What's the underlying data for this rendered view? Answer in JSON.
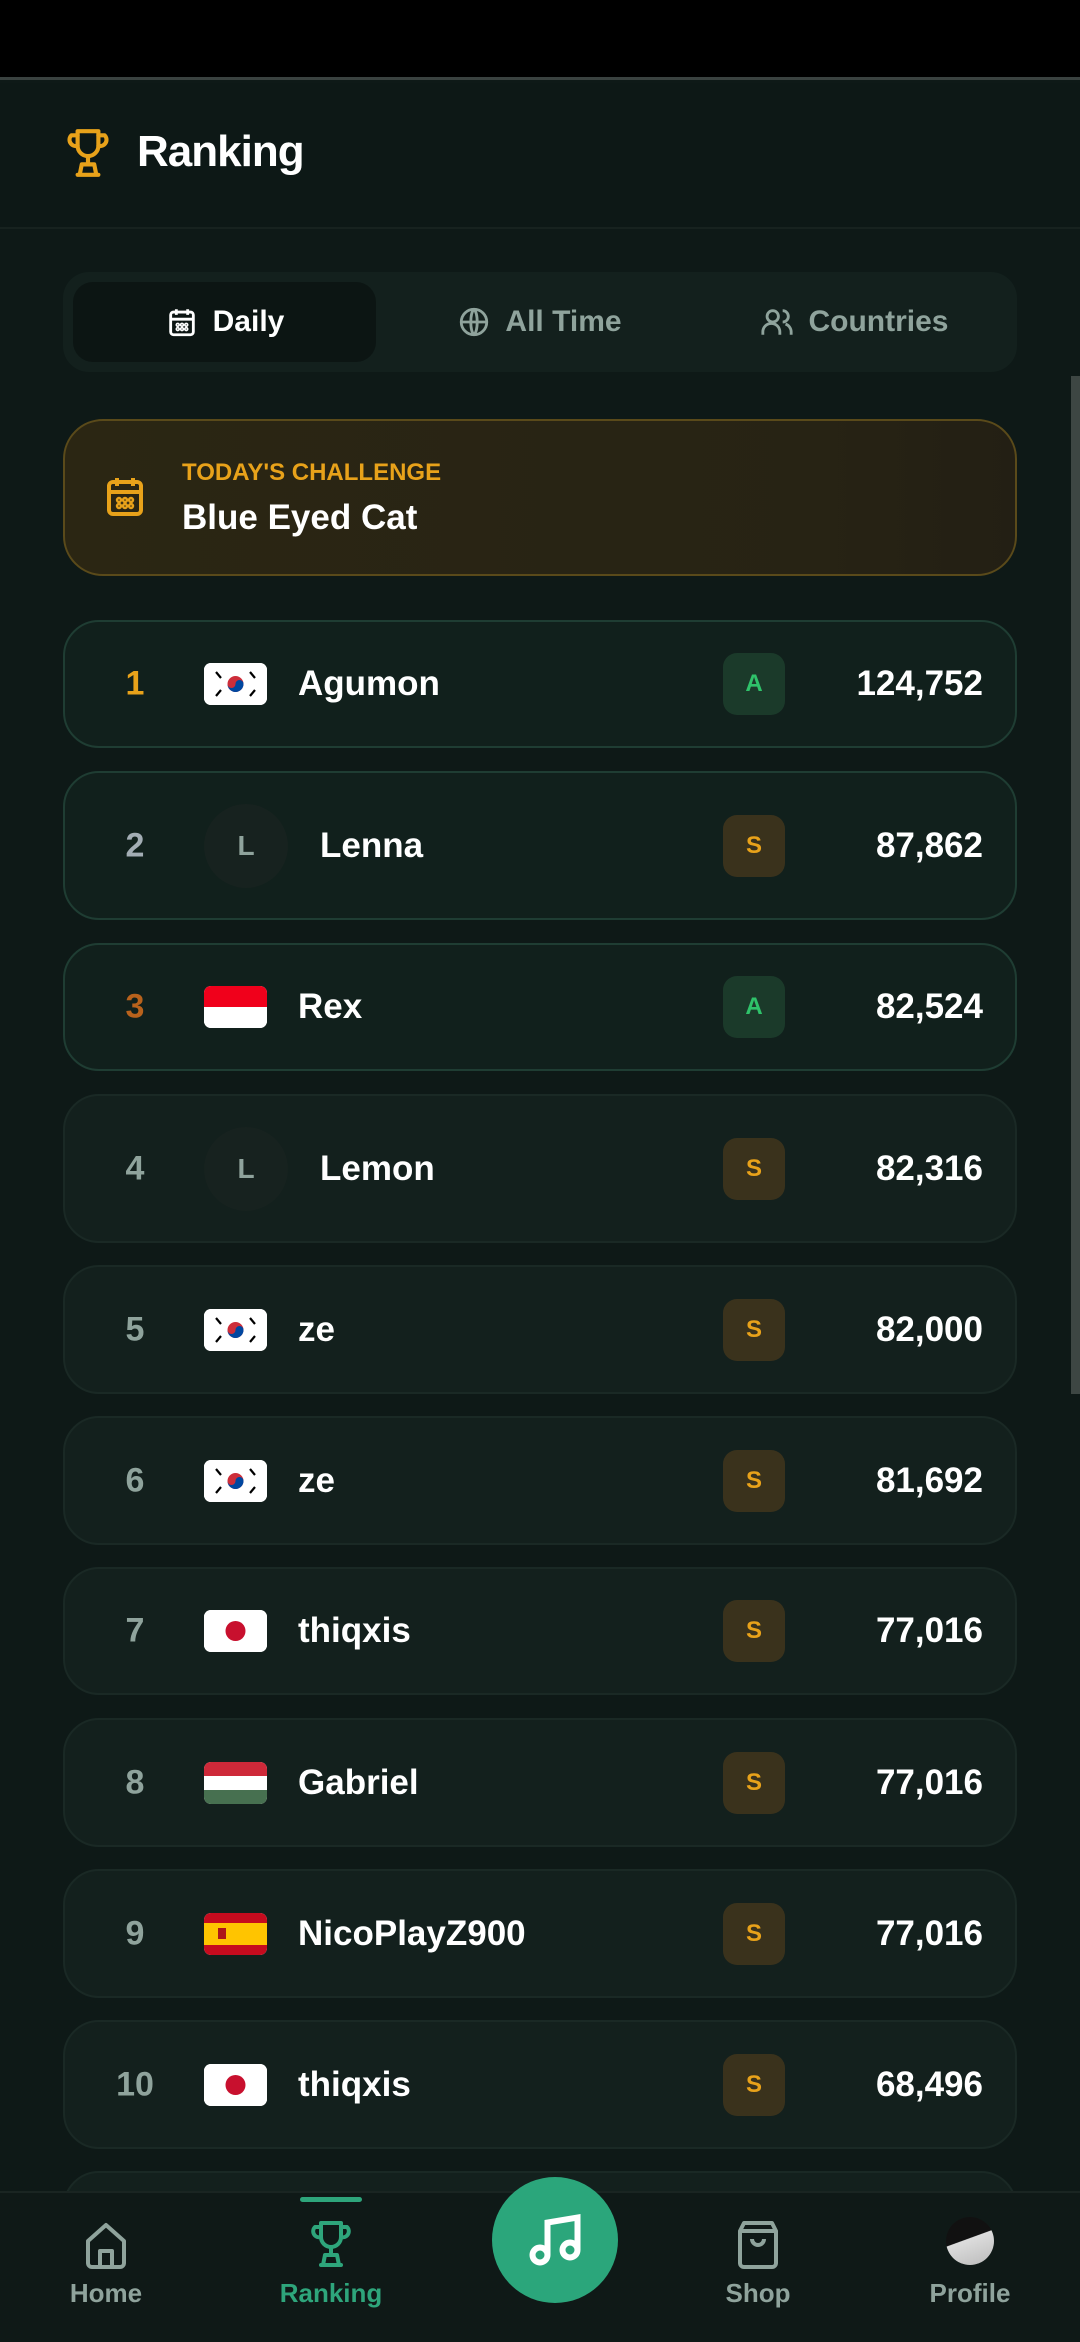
{
  "header": {
    "title": "Ranking",
    "icon": "trophy-icon"
  },
  "tabs": [
    {
      "label": "Daily",
      "icon": "calendar-icon",
      "active": true
    },
    {
      "label": "All Time",
      "icon": "globe-icon",
      "active": false
    },
    {
      "label": "Countries",
      "icon": "users-icon",
      "active": false
    }
  ],
  "challenge": {
    "label": "TODAY'S CHALLENGE",
    "name": "Blue Eyed Cat"
  },
  "colors": {
    "accent": "#2ba67b",
    "gold": "#e8a21a",
    "silver": "#a3adb4",
    "bronze": "#b8621c",
    "background": "#0e1917"
  },
  "rows": [
    {
      "rank": "1",
      "country": "KR",
      "name": "Agumon",
      "grade": "A",
      "score": "124,752"
    },
    {
      "rank": "2",
      "avatar": "L",
      "name": "Lenna",
      "grade": "S",
      "score": "87,862"
    },
    {
      "rank": "3",
      "country": "ID",
      "name": "Rex",
      "grade": "A",
      "score": "82,524"
    },
    {
      "rank": "4",
      "avatar": "L",
      "name": "Lemon",
      "grade": "S",
      "score": "82,316"
    },
    {
      "rank": "5",
      "country": "KR",
      "name": "ze",
      "grade": "S",
      "score": "82,000"
    },
    {
      "rank": "6",
      "country": "KR",
      "name": "ze",
      "grade": "S",
      "score": "81,692"
    },
    {
      "rank": "7",
      "country": "JP",
      "name": "thiqxis",
      "grade": "S",
      "score": "77,016"
    },
    {
      "rank": "8",
      "country": "HU",
      "name": "Gabriel",
      "grade": "S",
      "score": "77,016"
    },
    {
      "rank": "9",
      "country": "ES",
      "name": "NicoPlayZ900",
      "grade": "S",
      "score": "77,016"
    },
    {
      "rank": "10",
      "country": "JP",
      "name": "thiqxis",
      "grade": "S",
      "score": "68,496"
    }
  ],
  "nav": {
    "home": "Home",
    "ranking": "Ranking",
    "shop": "Shop",
    "profile": "Profile",
    "active": "ranking"
  }
}
